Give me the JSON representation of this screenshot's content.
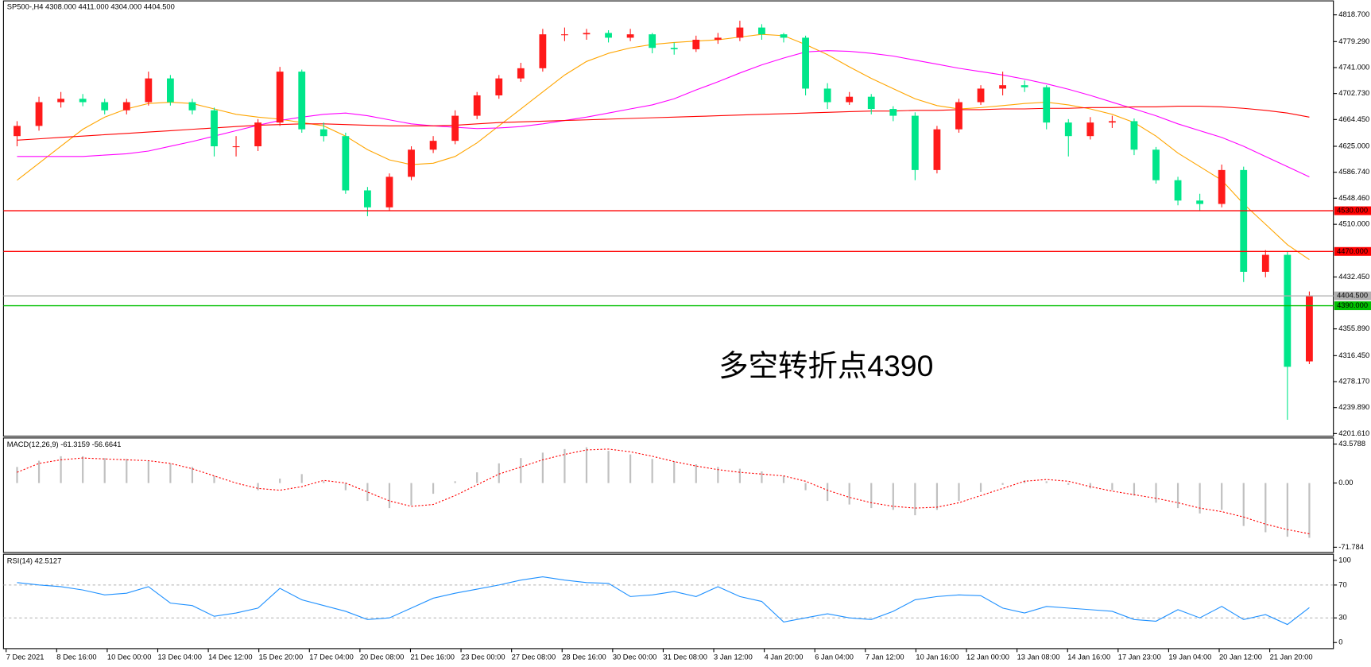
{
  "chart_data": {
    "type": "candlestick",
    "title": "SP500-,H4  4308.000 4411.000 4304.000 4404.500",
    "annotation": "多空转折点4390",
    "up_color": "#ff1a1a",
    "down_color": "#00e68a",
    "candles": {
      "open": [
        4640,
        4655,
        4690,
        4695,
        4690,
        4678,
        4690,
        4725,
        4690,
        4678,
        4625,
        4625,
        4660,
        4735,
        4650,
        4640,
        4560,
        4535,
        4580,
        4620,
        4633,
        4670,
        4700,
        4725,
        4740,
        4790,
        4790,
        4792,
        4785,
        4790,
        4770,
        4768,
        4782,
        4785,
        4800,
        4790,
        4785,
        4710,
        4690,
        4698,
        4680,
        4670,
        4590,
        4650,
        4690,
        4710,
        4715,
        4712,
        4660,
        4640,
        4660,
        4662,
        4620,
        4575,
        4545,
        4540,
        4590,
        4440,
        4465,
        4308
      ],
      "high": [
        4662,
        4698,
        4705,
        4702,
        4695,
        4695,
        4735,
        4730,
        4695,
        4682,
        4640,
        4665,
        4742,
        4738,
        4660,
        4645,
        4565,
        4585,
        4625,
        4640,
        4678,
        4705,
        4730,
        4748,
        4798,
        4800,
        4798,
        4796,
        4798,
        4792,
        4778,
        4788,
        4792,
        4810,
        4805,
        4792,
        4788,
        4718,
        4705,
        4702,
        4684,
        4675,
        4655,
        4695,
        4715,
        4735,
        4722,
        4715,
        4665,
        4668,
        4670,
        4666,
        4624,
        4580,
        4555,
        4598,
        4595,
        4472,
        4470,
        4411
      ],
      "low": [
        4625,
        4648,
        4682,
        4684,
        4672,
        4672,
        4685,
        4685,
        4672,
        4610,
        4610,
        4618,
        4655,
        4645,
        4632,
        4555,
        4522,
        4530,
        4575,
        4615,
        4628,
        4665,
        4695,
        4720,
        4735,
        4780,
        4782,
        4778,
        4780,
        4762,
        4760,
        4764,
        4776,
        4780,
        4782,
        4778,
        4700,
        4680,
        4686,
        4672,
        4662,
        4575,
        4585,
        4645,
        4686,
        4700,
        4705,
        4650,
        4610,
        4635,
        4652,
        4612,
        4570,
        4538,
        4530,
        4535,
        4425,
        4432,
        4222,
        4304
      ],
      "close": [
        4655,
        4690,
        4695,
        4690,
        4678,
        4690,
        4725,
        4690,
        4678,
        4625,
        4625,
        4660,
        4735,
        4650,
        4640,
        4560,
        4535,
        4580,
        4620,
        4633,
        4670,
        4700,
        4725,
        4740,
        4790,
        4790,
        4792,
        4785,
        4790,
        4770,
        4768,
        4782,
        4785,
        4800,
        4790,
        4785,
        4710,
        4690,
        4698,
        4680,
        4670,
        4590,
        4650,
        4690,
        4710,
        4715,
        4712,
        4660,
        4640,
        4660,
        4662,
        4620,
        4575,
        4545,
        4540,
        4590,
        4440,
        4465,
        4300,
        4404.5
      ]
    },
    "moving_averages": [
      {
        "color": "#ffa500",
        "values": [
          4575,
          4600,
          4625,
          4650,
          4668,
          4680,
          4688,
          4690,
          4688,
          4680,
          4672,
          4668,
          4665,
          4660,
          4655,
          4640,
          4620,
          4605,
          4598,
          4600,
          4610,
          4630,
          4655,
          4680,
          4705,
          4730,
          4750,
          4762,
          4770,
          4775,
          4778,
          4780,
          4782,
          4786,
          4790,
          4788,
          4775,
          4760,
          4742,
          4725,
          4710,
          4695,
          4685,
          4680,
          4682,
          4685,
          4688,
          4690,
          4686,
          4680,
          4672,
          4660,
          4640,
          4615,
          4595,
          4575,
          4540,
          4510,
          4480,
          4458
        ]
      },
      {
        "color": "#ff00ff",
        "values": [
          4610,
          4610,
          4610,
          4610,
          4612,
          4614,
          4618,
          4625,
          4632,
          4640,
          4648,
          4656,
          4663,
          4668,
          4672,
          4674,
          4670,
          4664,
          4658,
          4655,
          4653,
          4651,
          4652,
          4654,
          4658,
          4663,
          4668,
          4674,
          4680,
          4686,
          4695,
          4708,
          4720,
          4733,
          4745,
          4755,
          4764,
          4766,
          4765,
          4762,
          4758,
          4752,
          4746,
          4740,
          4735,
          4730,
          4724,
          4717,
          4709,
          4700,
          4690,
          4680,
          4670,
          4658,
          4648,
          4638,
          4625,
          4610,
          4595,
          4580
        ]
      },
      {
        "color": "#ff0000",
        "values": [
          4634,
          4636,
          4638,
          4640,
          4642,
          4644,
          4646,
          4648,
          4650,
          4652,
          4654,
          4656,
          4657,
          4658,
          4658,
          4657,
          4656,
          4655,
          4655,
          4655,
          4656,
          4658,
          4660,
          4661,
          4662,
          4663,
          4664,
          4665,
          4666,
          4667,
          4668,
          4669,
          4670,
          4671,
          4672,
          4673,
          4674,
          4675,
          4676,
          4677,
          4677,
          4678,
          4678,
          4679,
          4679,
          4680,
          4680,
          4681,
          4681,
          4682,
          4682,
          4683,
          4683,
          4684,
          4684,
          4683,
          4681,
          4678,
          4674,
          4668
        ]
      }
    ],
    "ylim": [
      4197.7,
      4838.0
    ],
    "yticks": [
      {
        "value": 4818.7,
        "label": "4818.700"
      },
      {
        "value": 4779.29,
        "label": "4779.290"
      },
      {
        "value": 4741,
        "label": "4741.000"
      },
      {
        "value": 4702.73,
        "label": "4702.730"
      },
      {
        "value": 4664.45,
        "label": "4664.450"
      },
      {
        "value": 4625,
        "label": "4625.000"
      },
      {
        "value": 4586.74,
        "label": "4586.740"
      },
      {
        "value": 4548.46,
        "label": "4548.460"
      },
      {
        "value": 4510,
        "label": "4510.000"
      },
      {
        "value": 4432.45,
        "label": "4432.450"
      },
      {
        "value": 4355.89,
        "label": "4355.890"
      },
      {
        "value": 4316.45,
        "label": "4316.450"
      },
      {
        "value": 4278.17,
        "label": "4278.170"
      },
      {
        "value": 4239.89,
        "label": "4239.890"
      },
      {
        "value": 4201.61,
        "label": "4201.610"
      }
    ],
    "levels": [
      {
        "value": 4530,
        "label": "4530.000",
        "color": "#ff0000"
      },
      {
        "value": 4470,
        "label": "4470.000",
        "color": "#ff0000"
      },
      {
        "value": 4404.5,
        "label": "4404.500",
        "color": "#b0b0b0"
      },
      {
        "value": 4390,
        "label": "4390.000",
        "color": "#00c000"
      }
    ],
    "x_labels": [
      "7 Dec 2021",
      "8 Dec 16:00",
      "10 Dec 00:00",
      "13 Dec 04:00",
      "14 Dec 12:00",
      "15 Dec 20:00",
      "17 Dec 04:00",
      "20 Dec 08:00",
      "21 Dec 16:00",
      "23 Dec 00:00",
      "27 Dec 08:00",
      "28 Dec 16:00",
      "30 Dec 00:00",
      "31 Dec 08:00",
      "3 Jan 12:00",
      "4 Jan 20:00",
      "6 Jan 04:00",
      "7 Jan 12:00",
      "10 Jan 16:00",
      "12 Jan 00:00",
      "13 Jan 08:00",
      "14 Jan 16:00",
      "17 Jan 23:00",
      "19 Jan 04:00",
      "20 Jan 12:00",
      "21 Jan 20:00"
    ],
    "macd": {
      "label": "MACD(12,26,9) -61.3159 -56.6641",
      "histogram": [
        18,
        25,
        30,
        30,
        28,
        27,
        25,
        22,
        18,
        8,
        0,
        -8,
        5,
        10,
        2,
        -8,
        -20,
        -28,
        -25,
        -12,
        2,
        12,
        22,
        28,
        34,
        38,
        40,
        36,
        32,
        27,
        24,
        21,
        18,
        16,
        13,
        8,
        -8,
        -20,
        -24,
        -28,
        -30,
        -36,
        -30,
        -20,
        -10,
        -2,
        3,
        2,
        -2,
        -6,
        -8,
        -14,
        -22,
        -28,
        -34,
        -30,
        -48,
        -55,
        -60,
        -61.3
      ],
      "signal": [
        12,
        22,
        26,
        28,
        27,
        26,
        25,
        22,
        16,
        8,
        0,
        -6,
        -8,
        -4,
        3,
        0,
        -10,
        -20,
        -26,
        -24,
        -14,
        -2,
        10,
        18,
        26,
        32,
        37,
        38,
        35,
        30,
        24,
        19,
        15,
        12,
        10,
        8,
        2,
        -8,
        -16,
        -22,
        -26,
        -28,
        -27,
        -22,
        -14,
        -6,
        2,
        4,
        2,
        -4,
        -9,
        -13,
        -17,
        -22,
        -28,
        -32,
        -38,
        -46,
        -52,
        -56.7
      ],
      "hist_color": "#c0c0c0",
      "signal_color": "#ff0000",
      "ylim": [
        -77.65,
        49.44
      ],
      "yticks": [
        43.5788,
        {
          "value": 0,
          "label": "0.00"
        },
        -71.784
      ]
    },
    "rsi": {
      "label": "RSI(14) 42.5127",
      "values": [
        73,
        70,
        68,
        64,
        58,
        60,
        68,
        48,
        45,
        32,
        36,
        42,
        66,
        52,
        45,
        38,
        28,
        30,
        42,
        54,
        60,
        65,
        70,
        76,
        80,
        76,
        73,
        72,
        56,
        58,
        62,
        56,
        68,
        56,
        50,
        25,
        30,
        35,
        30,
        28,
        38,
        52,
        56,
        58,
        57,
        42,
        36,
        44,
        42,
        40,
        38,
        28,
        26,
        40,
        30,
        44,
        28,
        34,
        22,
        42.5127
      ],
      "color": "#1e90ff",
      "ylim": [
        -7.4,
        106.4
      ],
      "yticks": [
        100,
        70,
        30,
        0
      ],
      "levels": [
        70,
        30
      ]
    }
  }
}
